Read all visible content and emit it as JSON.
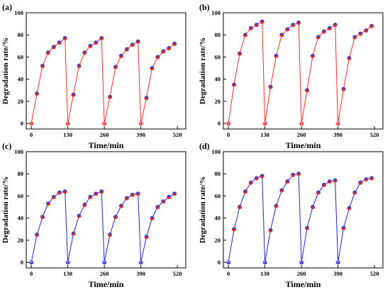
{
  "chart_data": [
    {
      "panel": "(a)",
      "type": "line",
      "xlabel": "Time/min",
      "ylabel": "Degradation rate/%",
      "xlim": [
        -18,
        550
      ],
      "ylim": [
        -5,
        100
      ],
      "xticks": [
        0,
        130,
        260,
        390,
        520
      ],
      "yticks": [
        0,
        20,
        40,
        60,
        80,
        100
      ],
      "grid": false,
      "colors": {
        "line": "#ff2a2a",
        "marker_top": "#3333cc",
        "marker_bottom": "#e8242a",
        "zero_marker": "#ff2a2a"
      },
      "x": [
        0,
        20,
        40,
        60,
        80,
        100,
        120,
        130,
        150,
        170,
        190,
        210,
        230,
        250,
        260,
        280,
        300,
        320,
        340,
        360,
        380,
        390,
        410,
        430,
        450,
        470,
        490,
        510
      ],
      "y": [
        0,
        27,
        52,
        64,
        69,
        73,
        77,
        0,
        26,
        52,
        64,
        70,
        73,
        77,
        0,
        24,
        51,
        61,
        67,
        71,
        74,
        0,
        23,
        50,
        60,
        65,
        68,
        72
      ]
    },
    {
      "panel": "(b)",
      "type": "line",
      "xlabel": "Time/min",
      "ylabel": "Degradation rate/%",
      "xlim": [
        -18,
        550
      ],
      "ylim": [
        -5,
        100
      ],
      "xticks": [
        0,
        130,
        260,
        390,
        520
      ],
      "yticks": [
        0,
        20,
        40,
        60,
        80,
        100
      ],
      "grid": false,
      "colors": {
        "line": "#ff2a2a",
        "marker_top": "#3333cc",
        "marker_bottom": "#e8242a",
        "zero_marker": "#ff2a2a"
      },
      "x": [
        0,
        20,
        40,
        60,
        80,
        100,
        120,
        130,
        150,
        170,
        190,
        210,
        230,
        250,
        260,
        280,
        300,
        320,
        340,
        360,
        380,
        390,
        410,
        430,
        450,
        470,
        490,
        510
      ],
      "y": [
        0,
        35,
        63,
        80,
        86,
        89,
        92,
        0,
        33,
        61,
        80,
        85,
        89,
        91,
        0,
        30,
        61,
        78,
        83,
        86,
        89,
        0,
        31,
        59,
        78,
        81,
        84,
        88
      ]
    },
    {
      "panel": "(c)",
      "type": "line",
      "xlabel": "Time/min",
      "ylabel": "Degradation rate/%",
      "xlim": [
        -18,
        550
      ],
      "ylim": [
        -5,
        100
      ],
      "xticks": [
        0,
        130,
        260,
        390,
        520
      ],
      "yticks": [
        0,
        20,
        40,
        60,
        80,
        100
      ],
      "grid": false,
      "colors": {
        "line": "#2222dd",
        "marker_top": "#3333cc",
        "marker_bottom": "#e8242a",
        "zero_marker": "#2222cc"
      },
      "x": [
        0,
        20,
        40,
        60,
        80,
        100,
        120,
        130,
        150,
        170,
        190,
        210,
        230,
        250,
        260,
        280,
        300,
        320,
        340,
        360,
        380,
        390,
        410,
        430,
        450,
        470,
        490,
        510
      ],
      "y": [
        0,
        25,
        41,
        53,
        59,
        63,
        64,
        0,
        26,
        42,
        52,
        59,
        62,
        64,
        0,
        25,
        41,
        51,
        58,
        61,
        62,
        0,
        23,
        40,
        50,
        55,
        59,
        62
      ]
    },
    {
      "panel": "(d)",
      "type": "line",
      "xlabel": "Time/min",
      "ylabel": "Degradation rate/%",
      "xlim": [
        -18,
        550
      ],
      "ylim": [
        -5,
        100
      ],
      "xticks": [
        0,
        130,
        260,
        390,
        520
      ],
      "yticks": [
        0,
        20,
        40,
        60,
        80,
        100
      ],
      "grid": false,
      "colors": {
        "line": "#2222dd",
        "marker_top": "#3333cc",
        "marker_bottom": "#e8242a",
        "zero_marker": "#2222cc"
      },
      "x": [
        0,
        20,
        40,
        60,
        80,
        100,
        120,
        130,
        150,
        170,
        190,
        210,
        230,
        250,
        260,
        280,
        300,
        320,
        340,
        360,
        380,
        390,
        410,
        430,
        450,
        470,
        490,
        510
      ],
      "y": [
        0,
        30,
        50,
        64,
        72,
        76,
        78,
        0,
        29,
        51,
        65,
        73,
        79,
        80,
        0,
        31,
        50,
        63,
        70,
        73,
        74,
        0,
        31,
        49,
        63,
        72,
        75,
        76
      ]
    }
  ]
}
